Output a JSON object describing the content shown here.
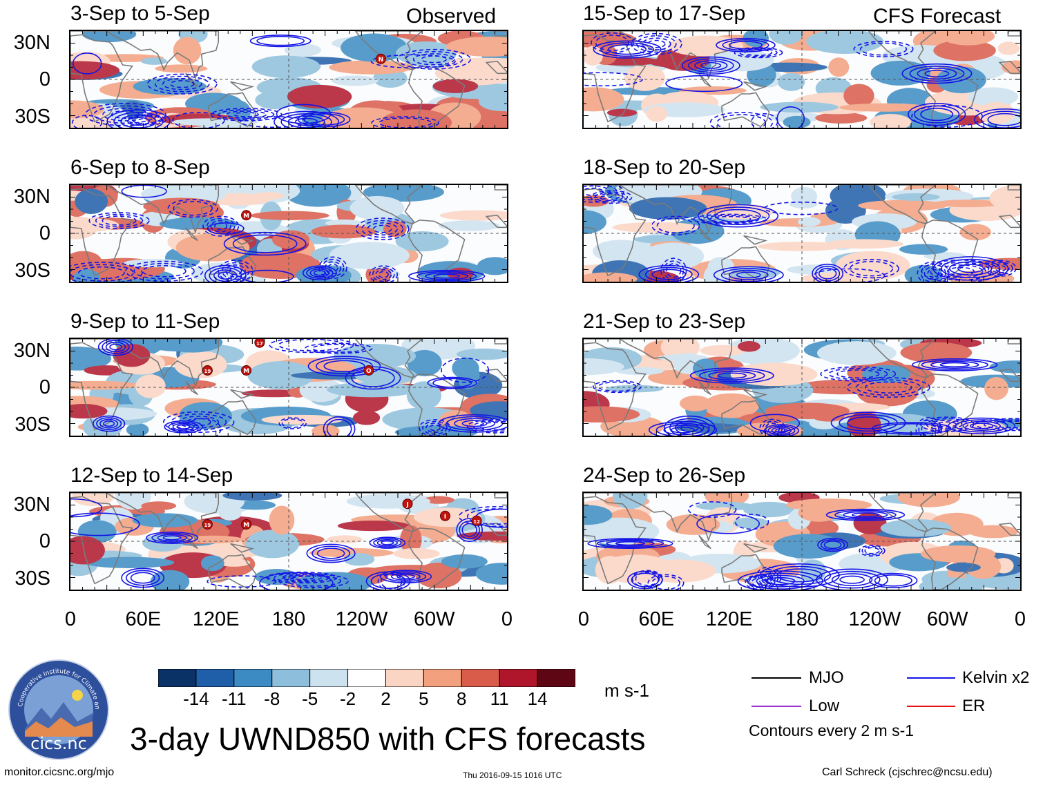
{
  "header": {
    "observed_label": "Observed",
    "forecast_label": "CFS Forecast"
  },
  "panels_left": [
    {
      "title": "3-Sep to 5-Sep",
      "storms": [
        {
          "label": "N",
          "lon": 256,
          "lat": 17
        }
      ]
    },
    {
      "title": "6-Sep to 8-Sep",
      "storms": [
        {
          "label": "M",
          "lon": 145,
          "lat": 15
        }
      ]
    },
    {
      "title": "9-Sep to 11-Sep",
      "storms": [
        {
          "label": "17",
          "lon": 156,
          "lat": 37
        },
        {
          "label": "19",
          "lon": 113,
          "lat": 14
        },
        {
          "label": "M",
          "lon": 145,
          "lat": 14
        },
        {
          "label": "O",
          "lon": 246,
          "lat": 14
        }
      ]
    },
    {
      "title": "12-Sep to 14-Sep",
      "storms": [
        {
          "label": "J",
          "lon": 278,
          "lat": 31
        },
        {
          "label": "I",
          "lon": 309,
          "lat": 21
        },
        {
          "label": "12",
          "lon": 335,
          "lat": 17
        },
        {
          "label": "19",
          "lon": 113,
          "lat": 14
        },
        {
          "label": "M",
          "lon": 145,
          "lat": 14
        }
      ]
    }
  ],
  "panels_right": [
    {
      "title": "15-Sep to 17-Sep"
    },
    {
      "title": "18-Sep to 20-Sep"
    },
    {
      "title": "21-Sep to 23-Sep"
    },
    {
      "title": "24-Sep to 26-Sep"
    }
  ],
  "chart_data": {
    "type": "heatmap",
    "title": "3-day UWND850 with CFS forecasts",
    "variable": "850-hPa zonal wind anomaly",
    "units": "m s-1",
    "x_axis": {
      "range_deg": [
        0,
        360
      ],
      "ticks": [
        "0",
        "60E",
        "120E",
        "180",
        "120W",
        "60W",
        "0"
      ],
      "tick_values": [
        0,
        60,
        120,
        180,
        240,
        300,
        360
      ]
    },
    "y_axis": {
      "range_deg": [
        -40,
        40
      ],
      "ticks": [
        "30N",
        "0",
        "30S"
      ],
      "tick_values": [
        30,
        0,
        -30
      ]
    },
    "colorbar": {
      "labels": [
        "-14",
        "-11",
        "-8",
        "-5",
        "-2",
        "2",
        "5",
        "8",
        "11",
        "14"
      ],
      "colors": [
        "#0b3266",
        "#1f5ea8",
        "#3c8cc3",
        "#8dbfdc",
        "#cde2ef",
        "#ffffff",
        "#fbd5c3",
        "#f3a07e",
        "#d95b4a",
        "#b0162b",
        "#5e0613"
      ],
      "units_label": "m s-1"
    },
    "legend": [
      {
        "label": "MJO",
        "color": "#000000"
      },
      {
        "label": "Kelvin x2",
        "color": "#1414e6"
      },
      {
        "label": "Low",
        "color": "#9a32cd"
      },
      {
        "label": "ER",
        "color": "#e61414"
      }
    ],
    "contour_note": "Contours every 2 m s-1"
  },
  "footer": {
    "url": "monitor.cicsnc.org/mjo",
    "timestamp": "Thu 2016-09-15 1016 UTC",
    "author": "Carl Schreck (cjschrec@ncsu.edu)",
    "logo_text": "cics.nc",
    "logo_ring_text": "Cooperative Institute for Climate and Satellites"
  }
}
